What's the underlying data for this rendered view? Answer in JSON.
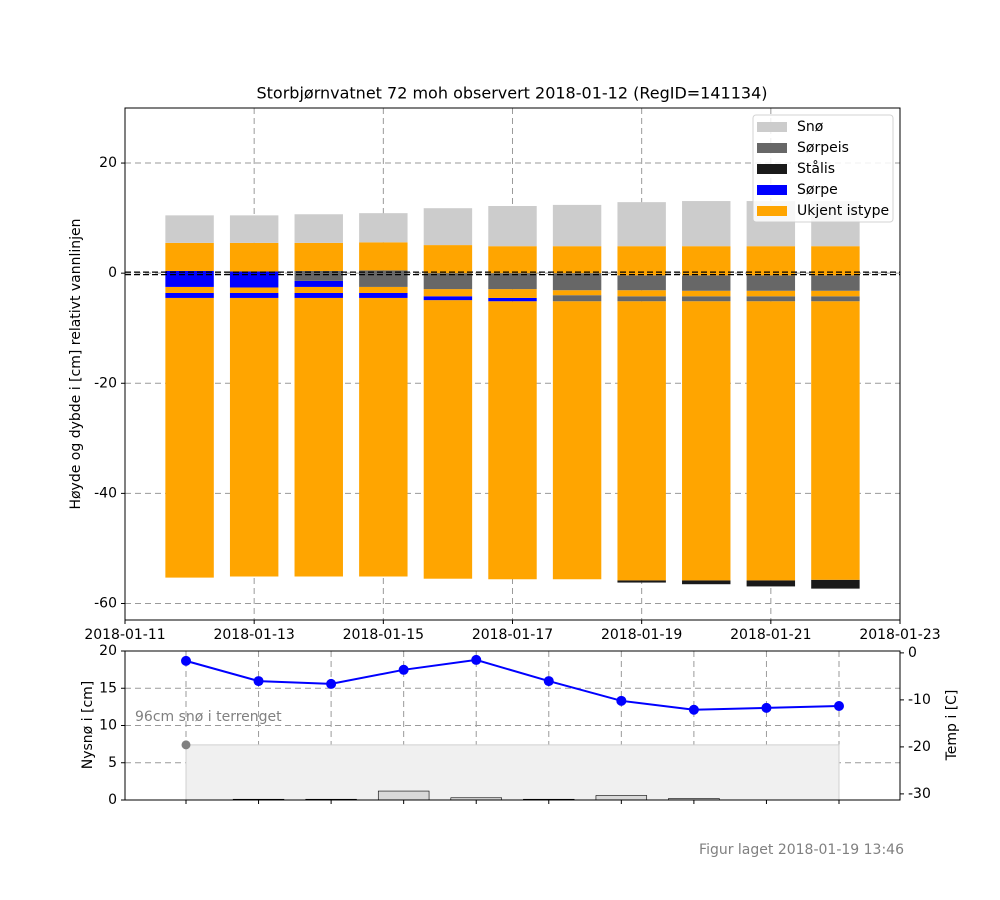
{
  "chart_data": [
    {
      "type": "bar",
      "title": "Storbjørnvatnet 72 moh observert 2018-01-12 (RegID=141134)",
      "ylabel": "Høyde og dybde i [cm] relativt vannlinjen",
      "x": [
        "2018-01-12",
        "2018-01-13",
        "2018-01-14",
        "2018-01-15",
        "2018-01-16",
        "2018-01-17",
        "2018-01-18",
        "2018-01-19",
        "2018-01-20",
        "2018-01-21",
        "2018-01-22"
      ],
      "xlim": [
        "2018-01-11",
        "2018-01-23"
      ],
      "xticks": [
        "2018-01-11",
        "2018-01-13",
        "2018-01-15",
        "2018-01-17",
        "2018-01-19",
        "2018-01-21",
        "2018-01-23"
      ],
      "ylim": [
        -63,
        30
      ],
      "yticks": [
        -60,
        -40,
        -20,
        0,
        20
      ],
      "grid": true,
      "legend": "upper right",
      "series": [
        {
          "name": "Snø",
          "color": "#cccccc"
        },
        {
          "name": "Sørpeis",
          "color": "#676767"
        },
        {
          "name": "Stålis",
          "color": "#1a1a1a"
        },
        {
          "name": "Sørpe",
          "color": "#0000ff"
        },
        {
          "name": "Ukjent istype",
          "color": "#ffa500"
        }
      ],
      "bottoms": [
        -55.3,
        -55.1,
        -55.1,
        -55.1,
        -55.5,
        -55.6,
        -55.6,
        -56.2,
        -56.5,
        -56.9,
        -57.3
      ],
      "layers": [
        [
          {
            "series": 4,
            "value": 50.8
          },
          {
            "series": 3,
            "value": 0.9
          },
          {
            "series": 4,
            "value": 1.1
          },
          {
            "series": 3,
            "value": 2.9
          },
          {
            "series": 4,
            "value": 5.1
          },
          {
            "series": 0,
            "value": 5.0
          }
        ],
        [
          {
            "series": 4,
            "value": 50.6
          },
          {
            "series": 3,
            "value": 0.9
          },
          {
            "series": 4,
            "value": 1.0
          },
          {
            "series": 3,
            "value": 2.9
          },
          {
            "series": 4,
            "value": 5.2
          },
          {
            "series": 0,
            "value": 5.0
          }
        ],
        [
          {
            "series": 4,
            "value": 50.6
          },
          {
            "series": 3,
            "value": 0.9
          },
          {
            "series": 4,
            "value": 1.1
          },
          {
            "series": 3,
            "value": 1.1
          },
          {
            "series": 1,
            "value": 1.8
          },
          {
            "series": 4,
            "value": 5.1
          },
          {
            "series": 0,
            "value": 5.2
          }
        ],
        [
          {
            "series": 4,
            "value": 50.6
          },
          {
            "series": 3,
            "value": 0.9
          },
          {
            "series": 4,
            "value": 1.1
          },
          {
            "series": 1,
            "value": 3.0
          },
          {
            "series": 4,
            "value": 5.1
          },
          {
            "series": 0,
            "value": 5.3
          }
        ],
        [
          {
            "series": 4,
            "value": 50.6
          },
          {
            "series": 3,
            "value": 0.7
          },
          {
            "series": 4,
            "value": 1.3
          },
          {
            "series": 1,
            "value": 2.9
          },
          {
            "series": 4,
            "value": 5.1
          },
          {
            "series": 0,
            "value": 6.7
          }
        ],
        [
          {
            "series": 4,
            "value": 50.5
          },
          {
            "series": 3,
            "value": 0.6
          },
          {
            "series": 4,
            "value": 1.6
          },
          {
            "series": 1,
            "value": 2.9
          },
          {
            "series": 4,
            "value": 4.9
          },
          {
            "series": 0,
            "value": 7.3
          }
        ],
        [
          {
            "series": 4,
            "value": 50.5
          },
          {
            "series": 1,
            "value": 1.1
          },
          {
            "series": 4,
            "value": 0.9
          },
          {
            "series": 1,
            "value": 3.1
          },
          {
            "series": 4,
            "value": 4.9
          },
          {
            "series": 0,
            "value": 7.5
          }
        ],
        [
          {
            "series": 2,
            "value": 0.4
          },
          {
            "series": 4,
            "value": 50.7
          },
          {
            "series": 1,
            "value": 0.9
          },
          {
            "series": 4,
            "value": 1.1
          },
          {
            "series": 1,
            "value": 2.7
          },
          {
            "series": 4,
            "value": 5.3
          },
          {
            "series": 0,
            "value": 8.0
          }
        ],
        [
          {
            "series": 2,
            "value": 0.7
          },
          {
            "series": 4,
            "value": 50.7
          },
          {
            "series": 1,
            "value": 0.9
          },
          {
            "series": 4,
            "value": 1.0
          },
          {
            "series": 1,
            "value": 2.8
          },
          {
            "series": 4,
            "value": 5.3
          },
          {
            "series": 0,
            "value": 8.2
          }
        ],
        [
          {
            "series": 2,
            "value": 1.1
          },
          {
            "series": 4,
            "value": 50.7
          },
          {
            "series": 1,
            "value": 0.9
          },
          {
            "series": 4,
            "value": 1.0
          },
          {
            "series": 1,
            "value": 2.8
          },
          {
            "series": 4,
            "value": 5.3
          },
          {
            "series": 0,
            "value": 8.2
          }
        ],
        [
          {
            "series": 2,
            "value": 1.6
          },
          {
            "series": 4,
            "value": 50.6
          },
          {
            "series": 1,
            "value": 0.9
          },
          {
            "series": 4,
            "value": 1.0
          },
          {
            "series": 1,
            "value": 2.8
          },
          {
            "series": 4,
            "value": 5.3
          },
          {
            "series": 0,
            "value": 8.2
          }
        ]
      ]
    },
    {
      "type": "combo",
      "ylabel": "Nysnø i [cm]",
      "y2label": "Temp i [C]",
      "categories": [
        null,
        null,
        null,
        null,
        null,
        null,
        null,
        null,
        null,
        null
      ],
      "ylim": [
        0,
        20
      ],
      "yticks": [
        0,
        5,
        10,
        15,
        20
      ],
      "y2lim": [
        -31.3,
        0.4
      ],
      "y2ticks": [
        0,
        -10,
        -20,
        -30
      ],
      "grid": true,
      "terrain_snow": {
        "label": "96cm snø i terrenget",
        "value": 7.4,
        "color": "#808080"
      },
      "series": [
        {
          "type": "bar",
          "color": "#d9d9d9",
          "values": [
            0,
            0.1,
            0.1,
            1.2,
            0.3,
            0.1,
            0.6,
            0.2,
            0,
            0
          ]
        },
        {
          "type": "line",
          "axis": "y2",
          "color": "#0000ff",
          "values": [
            -1.7,
            -6.0,
            -6.6,
            -3.6,
            -1.5,
            -6.0,
            -10.2,
            -12.1,
            -11.7,
            -11.3
          ]
        }
      ]
    }
  ],
  "footer": "Figur laget 2018-01-19 13:46"
}
